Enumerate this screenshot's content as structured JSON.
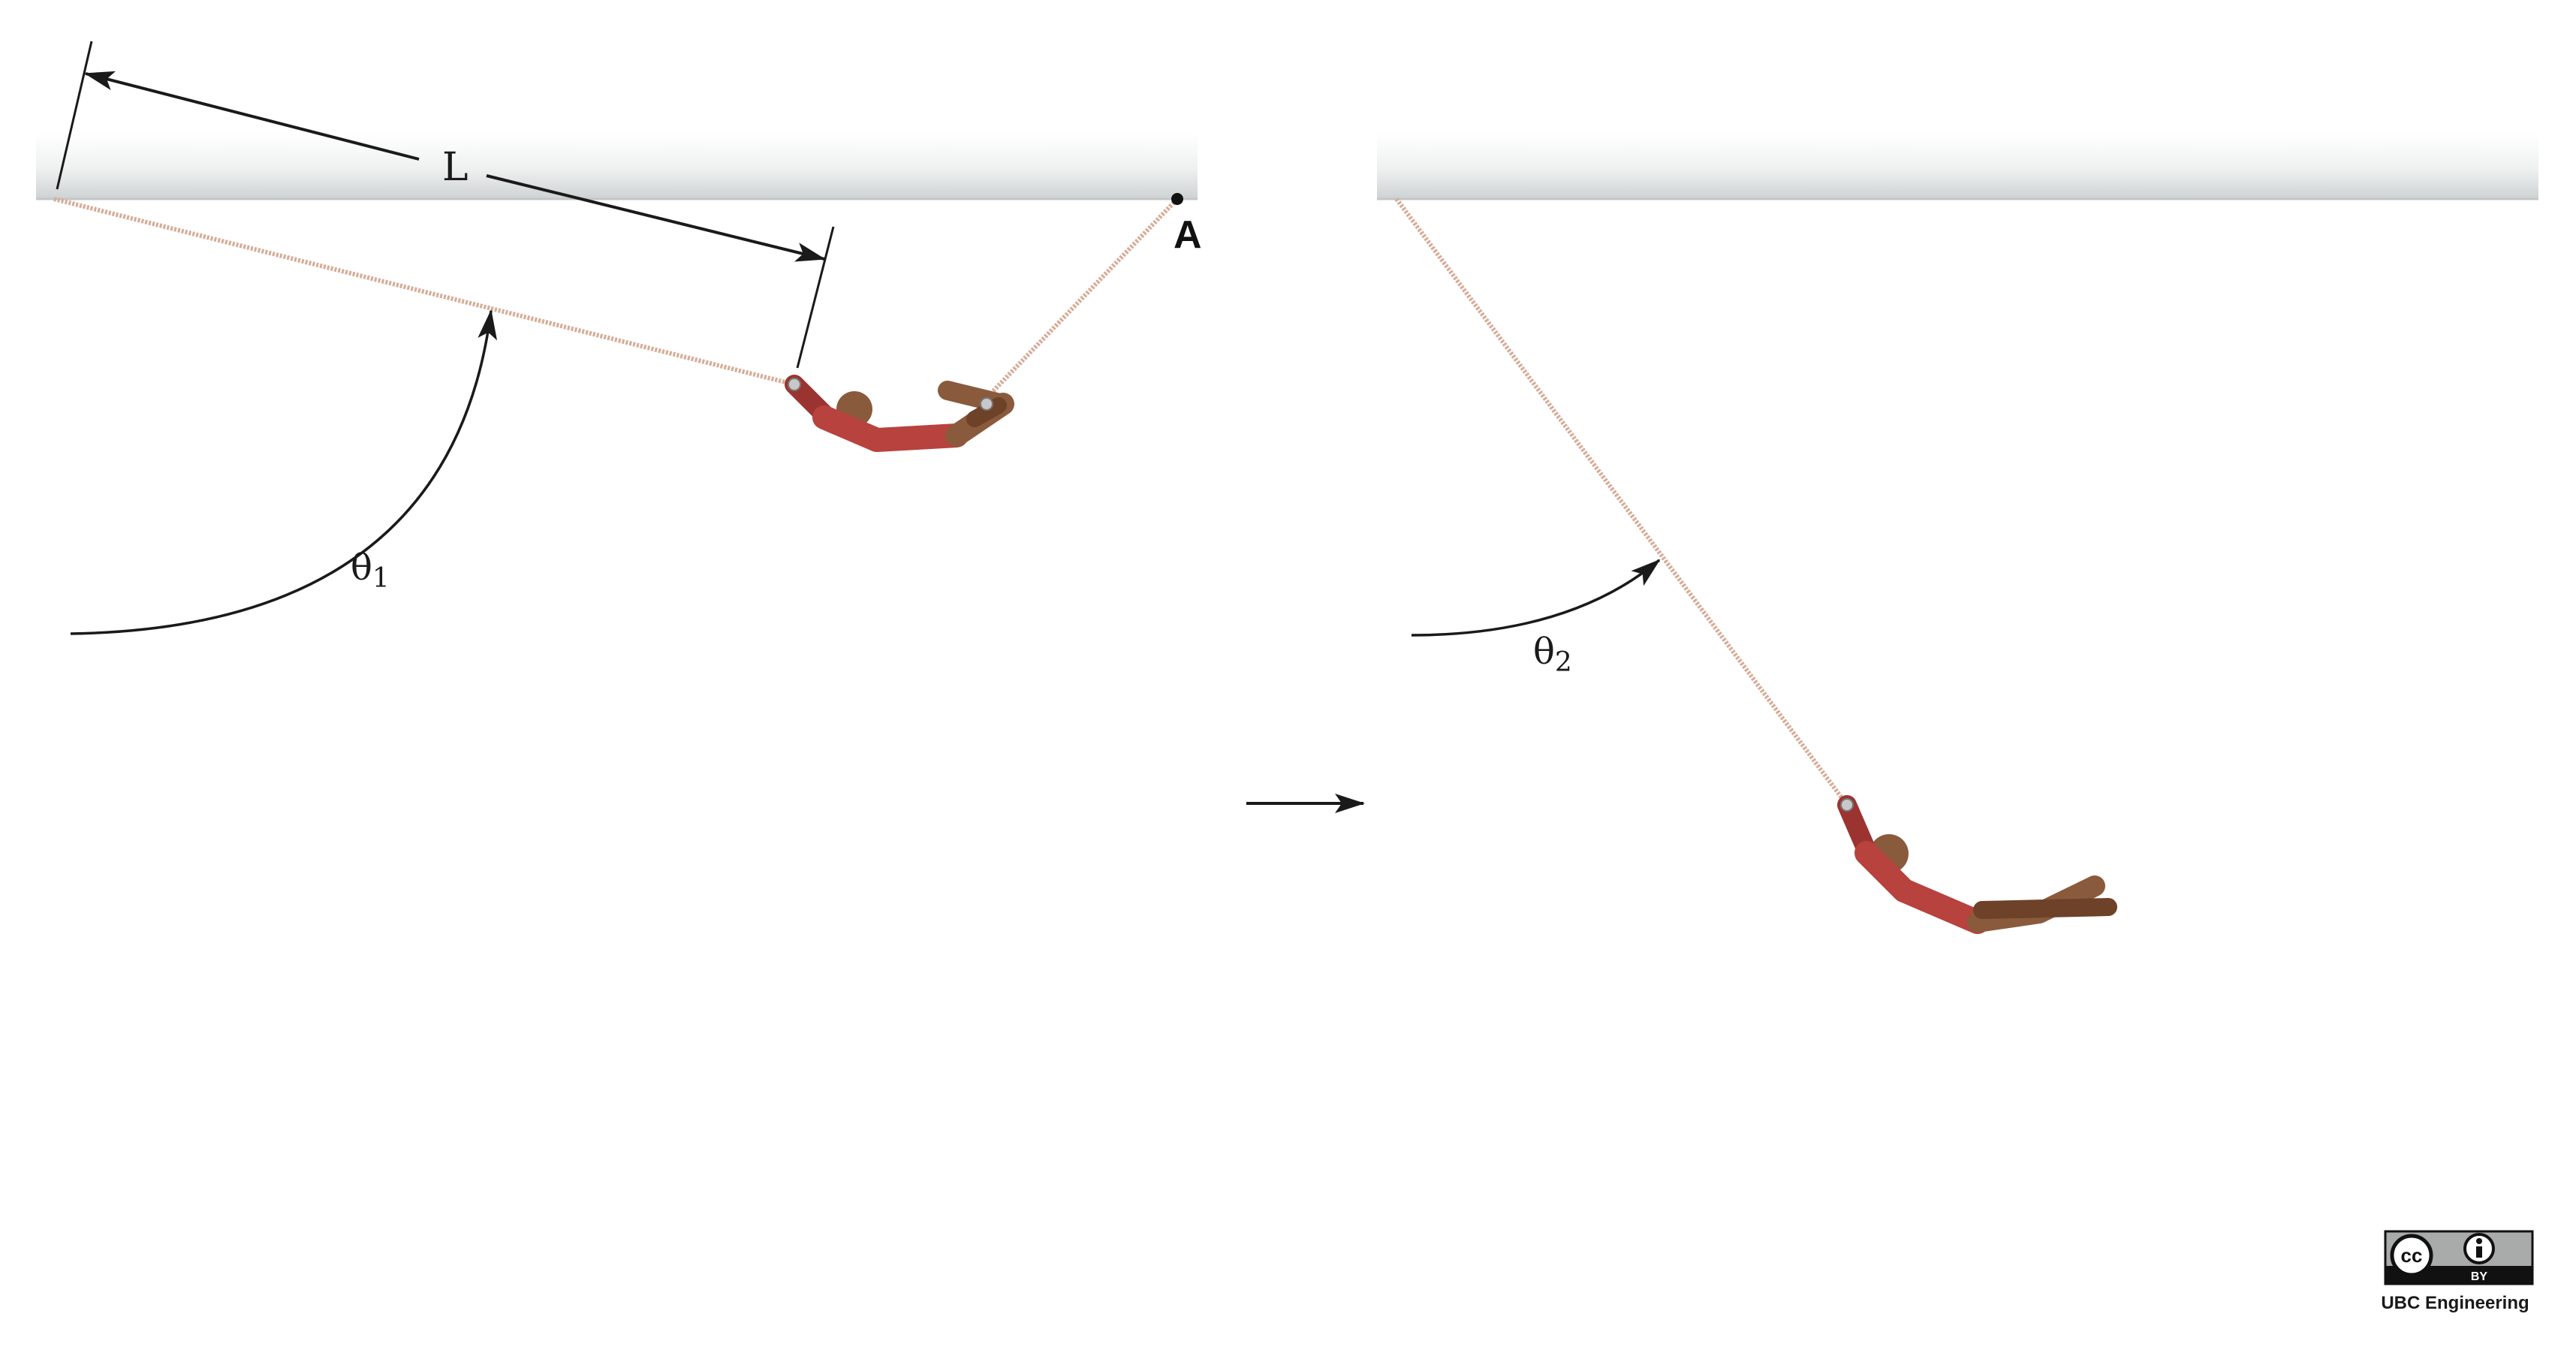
{
  "labels": {
    "length": "L",
    "point_a": "A",
    "theta1_symbol": "θ",
    "theta1_sub": "1",
    "theta2_symbol": "θ",
    "theta2_sub": "2"
  },
  "license": {
    "badge_cc": "cc",
    "badge_by": "BY",
    "credit": "UBC Engineering"
  },
  "colors": {
    "ceiling_top": "#ffffff",
    "ceiling_bottom": "#d3d6d6",
    "rope": "#d6ac98",
    "body_red": "#b8423e",
    "body_red_dark": "#9b3431",
    "skin": "#8a5a3c",
    "skin_dark": "#6e4228",
    "ink": "#1a1a1a",
    "joint": "#c8c8c8"
  }
}
